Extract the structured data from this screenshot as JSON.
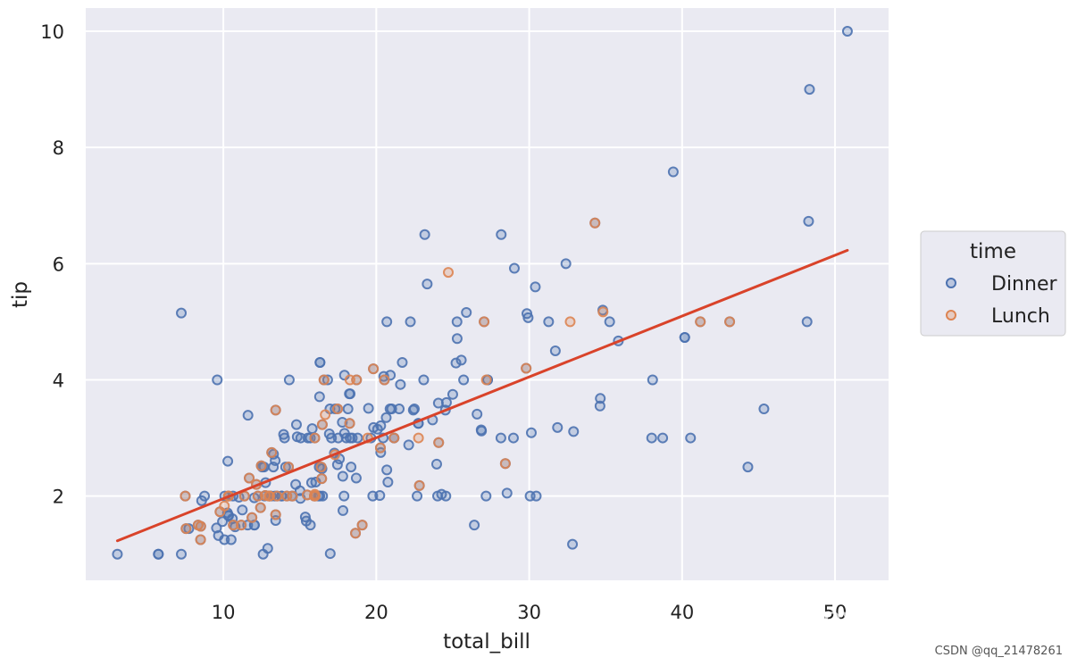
{
  "chart_data": {
    "type": "scatter",
    "title": "",
    "xlabel": "total_bill",
    "ylabel": "tip",
    "xlim": [
      1,
      53.5
    ],
    "ylim": [
      0.55,
      10.4
    ],
    "xticks": [
      10,
      20,
      30,
      40,
      50
    ],
    "yticks": [
      2,
      4,
      6,
      8,
      10
    ],
    "grid": true,
    "background": "#eaeaf2",
    "legend": {
      "title": "time",
      "placement": "right"
    },
    "series": [
      {
        "name": "Dinner",
        "color": "#4c72b0",
        "points": [
          [
            16.99,
            1.01
          ],
          [
            10.34,
            1.66
          ],
          [
            21.01,
            3.5
          ],
          [
            23.68,
            3.31
          ],
          [
            24.59,
            3.61
          ],
          [
            25.29,
            4.71
          ],
          [
            8.77,
            2.0
          ],
          [
            26.88,
            3.12
          ],
          [
            15.04,
            1.96
          ],
          [
            14.78,
            3.23
          ],
          [
            10.27,
            1.71
          ],
          [
            35.26,
            5.0
          ],
          [
            15.42,
            1.57
          ],
          [
            18.43,
            3.0
          ],
          [
            14.83,
            3.02
          ],
          [
            21.58,
            3.92
          ],
          [
            10.33,
            1.67
          ],
          [
            16.29,
            3.71
          ],
          [
            16.97,
            3.5
          ],
          [
            20.65,
            3.35
          ],
          [
            17.92,
            4.08
          ],
          [
            20.29,
            2.75
          ],
          [
            15.77,
            2.23
          ],
          [
            39.42,
            7.58
          ],
          [
            19.82,
            3.18
          ],
          [
            17.81,
            2.34
          ],
          [
            13.37,
            2.0
          ],
          [
            12.69,
            2.0
          ],
          [
            21.7,
            4.3
          ],
          [
            19.65,
            3.0
          ],
          [
            9.55,
            1.45
          ],
          [
            18.35,
            2.5
          ],
          [
            15.06,
            3.0
          ],
          [
            20.69,
            2.45
          ],
          [
            17.78,
            3.27
          ],
          [
            24.06,
            3.6
          ],
          [
            16.31,
            2.0
          ],
          [
            16.93,
            3.07
          ],
          [
            18.69,
            2.31
          ],
          [
            31.27,
            5.0
          ],
          [
            16.04,
            2.24
          ],
          [
            17.46,
            2.54
          ],
          [
            13.94,
            3.06
          ],
          [
            9.68,
            1.32
          ],
          [
            30.4,
            5.6
          ],
          [
            18.29,
            3.0
          ],
          [
            22.23,
            5.0
          ],
          [
            32.4,
            6.0
          ],
          [
            28.55,
            2.05
          ],
          [
            18.04,
            3.0
          ],
          [
            12.54,
            2.5
          ],
          [
            10.29,
            2.6
          ],
          [
            34.81,
            5.2
          ],
          [
            9.94,
            1.56
          ],
          [
            25.56,
            4.34
          ],
          [
            19.49,
            3.51
          ],
          [
            38.01,
            3.0
          ],
          [
            26.41,
            1.5
          ],
          [
            11.24,
            1.76
          ],
          [
            48.27,
            6.73
          ],
          [
            20.29,
            3.21
          ],
          [
            13.81,
            2.0
          ],
          [
            11.02,
            1.98
          ],
          [
            18.29,
            3.76
          ],
          [
            17.59,
            2.64
          ],
          [
            20.08,
            3.15
          ],
          [
            16.45,
            2.47
          ],
          [
            3.07,
            1.0
          ],
          [
            20.23,
            2.01
          ],
          [
            15.01,
            2.09
          ],
          [
            12.02,
            1.97
          ],
          [
            17.07,
            3.0
          ],
          [
            26.86,
            3.14
          ],
          [
            25.28,
            5.0
          ],
          [
            14.73,
            2.2
          ],
          [
            10.51,
            1.25
          ],
          [
            17.92,
            3.08
          ],
          [
            44.3,
            2.5
          ],
          [
            22.42,
            3.48
          ],
          [
            20.92,
            4.08
          ],
          [
            15.36,
            1.64
          ],
          [
            20.49,
            4.06
          ],
          [
            25.21,
            4.29
          ],
          [
            18.24,
            3.76
          ],
          [
            14.31,
            4.0
          ],
          [
            14.0,
            3.0
          ],
          [
            7.25,
            1.0
          ],
          [
            38.07,
            4.0
          ],
          [
            23.95,
            2.55
          ],
          [
            25.71,
            4.0
          ],
          [
            17.31,
            3.5
          ],
          [
            29.93,
            5.07
          ],
          [
            10.65,
            1.5
          ],
          [
            12.43,
            1.8
          ],
          [
            24.08,
            2.92
          ],
          [
            11.69,
            2.31
          ],
          [
            13.42,
            1.68
          ],
          [
            14.26,
            2.5
          ],
          [
            15.95,
            2.0
          ],
          [
            12.48,
            2.52
          ],
          [
            29.8,
            4.2
          ],
          [
            8.52,
            1.48
          ],
          [
            14.52,
            2.0
          ],
          [
            11.38,
            2.0
          ],
          [
            22.82,
            2.18
          ],
          [
            19.08,
            1.5
          ],
          [
            20.27,
            2.83
          ],
          [
            11.17,
            1.5
          ],
          [
            12.26,
            2.0
          ],
          [
            18.26,
            3.25
          ],
          [
            8.51,
            1.25
          ],
          [
            10.33,
            2.0
          ],
          [
            14.15,
            2.0
          ],
          [
            16.0,
            2.0
          ],
          [
            13.16,
            2.75
          ],
          [
            17.47,
            3.5
          ],
          [
            34.3,
            6.7
          ],
          [
            41.19,
            5.0
          ],
          [
            27.05,
            5.0
          ],
          [
            16.43,
            2.3
          ],
          [
            8.35,
            1.5
          ],
          [
            18.64,
            1.36
          ],
          [
            11.87,
            1.63
          ],
          [
            9.78,
            1.73
          ],
          [
            7.51,
            2.0
          ],
          [
            14.07,
            2.5
          ],
          [
            13.13,
            2.0
          ],
          [
            17.26,
            2.74
          ],
          [
            24.55,
            2.0
          ],
          [
            19.77,
            2.0
          ],
          [
            29.85,
            5.14
          ],
          [
            48.17,
            5.0
          ],
          [
            25.0,
            3.75
          ],
          [
            13.39,
            2.61
          ],
          [
            16.49,
            2.0
          ],
          [
            21.5,
            3.5
          ],
          [
            12.66,
            2.5
          ],
          [
            16.21,
            2.0
          ],
          [
            13.81,
            2.0
          ],
          [
            17.51,
            3.0
          ],
          [
            24.52,
            3.48
          ],
          [
            20.76,
            2.24
          ],
          [
            31.71,
            4.5
          ],
          [
            10.59,
            1.61
          ],
          [
            10.63,
            2.0
          ],
          [
            50.81,
            10.0
          ],
          [
            15.81,
            3.16
          ],
          [
            7.25,
            5.15
          ],
          [
            31.85,
            3.18
          ],
          [
            16.82,
            4.0
          ],
          [
            32.9,
            3.11
          ],
          [
            17.89,
            2.0
          ],
          [
            14.48,
            2.0
          ],
          [
            9.6,
            4.0
          ],
          [
            34.63,
            3.55
          ],
          [
            34.65,
            3.68
          ],
          [
            23.33,
            5.65
          ],
          [
            45.35,
            3.5
          ],
          [
            23.17,
            6.5
          ],
          [
            40.55,
            3.0
          ],
          [
            20.69,
            5.0
          ],
          [
            20.9,
            3.5
          ],
          [
            30.46,
            2.0
          ],
          [
            18.15,
            3.5
          ],
          [
            23.1,
            4.0
          ],
          [
            15.69,
            1.5
          ],
          [
            19.81,
            4.19
          ],
          [
            28.44,
            2.56
          ],
          [
            15.48,
            2.02
          ],
          [
            16.58,
            4.0
          ],
          [
            7.56,
            1.44
          ],
          [
            10.34,
            2.0
          ],
          [
            43.11,
            5.0
          ],
          [
            13.0,
            2.0
          ],
          [
            13.51,
            2.0
          ],
          [
            18.71,
            4.0
          ],
          [
            12.74,
            2.01
          ],
          [
            13.0,
            2.0
          ],
          [
            16.4,
            2.5
          ],
          [
            20.53,
            4.0
          ],
          [
            16.47,
            3.23
          ],
          [
            26.59,
            3.41
          ],
          [
            38.73,
            3.0
          ],
          [
            24.27,
            2.03
          ],
          [
            12.76,
            2.23
          ],
          [
            30.06,
            2.0
          ],
          [
            25.89,
            5.16
          ],
          [
            48.33,
            9.0
          ],
          [
            13.27,
            2.5
          ],
          [
            28.17,
            6.5
          ],
          [
            12.9,
            1.1
          ],
          [
            28.15,
            3.0
          ],
          [
            11.59,
            1.5
          ],
          [
            7.74,
            1.44
          ],
          [
            30.14,
            3.09
          ],
          [
            12.16,
            2.2
          ],
          [
            13.42,
            3.48
          ],
          [
            8.58,
            1.92
          ],
          [
            15.98,
            3.0
          ],
          [
            13.42,
            1.58
          ],
          [
            16.27,
            2.5
          ],
          [
            10.09,
            2.0
          ],
          [
            20.45,
            3.0
          ],
          [
            13.28,
            2.72
          ],
          [
            22.12,
            2.88
          ],
          [
            24.01,
            2.0
          ],
          [
            15.69,
            3.0
          ],
          [
            11.61,
            3.39
          ],
          [
            10.77,
            1.47
          ],
          [
            15.53,
            3.0
          ],
          [
            10.07,
            1.25
          ],
          [
            12.6,
            1.0
          ],
          [
            32.83,
            1.17
          ],
          [
            35.83,
            4.67
          ],
          [
            29.03,
            5.92
          ],
          [
            27.18,
            2.0
          ],
          [
            22.67,
            2.0
          ],
          [
            17.82,
            1.75
          ],
          [
            18.78,
            3.0
          ],
          [
            5.75,
            1.0
          ],
          [
            16.32,
            4.3
          ],
          [
            22.75,
            3.25
          ],
          [
            40.17,
            4.73
          ],
          [
            27.28,
            4.0
          ],
          [
            12.03,
            1.5
          ],
          [
            21.16,
            3.0
          ],
          [
            28.97,
            3.0
          ],
          [
            22.49,
            3.5
          ],
          [
            5.75,
            1.0
          ],
          [
            16.32,
            4.3
          ],
          [
            22.75,
            3.25
          ],
          [
            40.17,
            4.73
          ],
          [
            27.28,
            4.0
          ],
          [
            12.03,
            1.5
          ],
          [
            21.16,
            3.0
          ]
        ]
      },
      {
        "name": "Lunch",
        "color": "#dd8452",
        "points": [
          [
            27.2,
            4.0
          ],
          [
            22.76,
            3.0
          ],
          [
            17.29,
            2.71
          ],
          [
            19.44,
            3.0
          ],
          [
            16.66,
            3.4
          ],
          [
            10.07,
            1.83
          ],
          [
            32.68,
            5.0
          ],
          [
            15.98,
            2.03
          ],
          [
            34.83,
            5.17
          ],
          [
            13.03,
            2.0
          ],
          [
            18.28,
            4.0
          ],
          [
            24.71,
            5.85
          ],
          [
            21.16,
            3.0
          ],
          [
            10.65,
            1.5
          ],
          [
            12.43,
            1.8
          ],
          [
            24.08,
            2.92
          ],
          [
            11.69,
            2.31
          ],
          [
            13.42,
            1.68
          ],
          [
            14.26,
            2.5
          ],
          [
            15.95,
            2.0
          ],
          [
            12.48,
            2.52
          ],
          [
            29.8,
            4.2
          ],
          [
            8.52,
            1.48
          ],
          [
            14.52,
            2.0
          ],
          [
            11.38,
            2.0
          ],
          [
            22.82,
            2.18
          ],
          [
            19.08,
            1.5
          ],
          [
            20.27,
            2.83
          ],
          [
            11.17,
            1.5
          ],
          [
            12.26,
            2.0
          ],
          [
            18.26,
            3.25
          ],
          [
            8.51,
            1.25
          ],
          [
            10.33,
            2.0
          ],
          [
            14.15,
            2.0
          ],
          [
            16.0,
            2.0
          ],
          [
            13.16,
            2.75
          ],
          [
            17.47,
            3.5
          ],
          [
            34.3,
            6.7
          ],
          [
            41.19,
            5.0
          ],
          [
            27.05,
            5.0
          ],
          [
            16.43,
            2.3
          ],
          [
            8.35,
            1.5
          ],
          [
            18.64,
            1.36
          ],
          [
            11.87,
            1.63
          ],
          [
            9.78,
            1.73
          ],
          [
            7.51,
            2.0
          ],
          [
            19.81,
            4.19
          ],
          [
            28.44,
            2.56
          ],
          [
            15.48,
            2.02
          ],
          [
            16.58,
            4.0
          ],
          [
            7.56,
            1.44
          ],
          [
            10.34,
            2.0
          ],
          [
            43.11,
            5.0
          ],
          [
            13.0,
            2.0
          ],
          [
            13.51,
            2.0
          ],
          [
            18.71,
            4.0
          ],
          [
            12.74,
            2.01
          ],
          [
            13.0,
            2.0
          ],
          [
            16.4,
            2.5
          ],
          [
            20.53,
            4.0
          ],
          [
            16.47,
            3.23
          ],
          [
            13.42,
            3.48
          ],
          [
            12.16,
            2.2
          ],
          [
            15.98,
            3.0
          ]
        ]
      }
    ],
    "regression": {
      "color": "#d9432a",
      "x": [
        3.07,
        50.81
      ],
      "y": [
        1.23,
        6.23
      ]
    }
  },
  "watermark": "知乎 @pythonic生物人",
  "credit": "CSDN @qq_21478261"
}
